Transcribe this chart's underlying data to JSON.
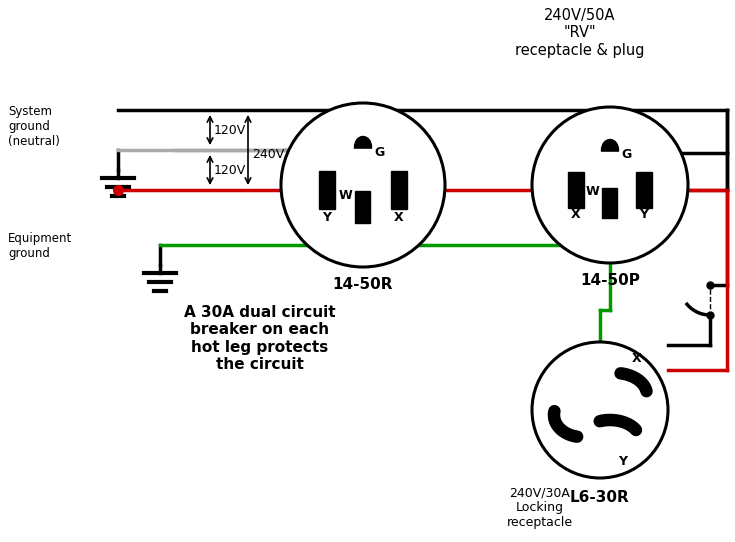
{
  "bg_color": "#ffffff",
  "color_black": "#000000",
  "color_red": "#cc0000",
  "color_green": "#009900",
  "color_gray": "#aaaaaa",
  "label_14_50R": "14-50R",
  "label_14_50P": "14-50P",
  "label_L6_30R": "L6-30R",
  "label_240V_30A": "240V/30A\nLocking\nreceptacle",
  "label_system_ground": "System\nground\n(neutral)",
  "label_equipment_ground": "Equipment\nground",
  "label_120V_top": "120V",
  "label_120V_bot": "120V",
  "label_240V_mid": "240V",
  "label_circuit_breaker": "A 30A dual circuit\nbreaker on each\nhot leg protects\nthe circuit",
  "label_title": "240V/50A\n\"RV\"\nreceptacle & plug"
}
